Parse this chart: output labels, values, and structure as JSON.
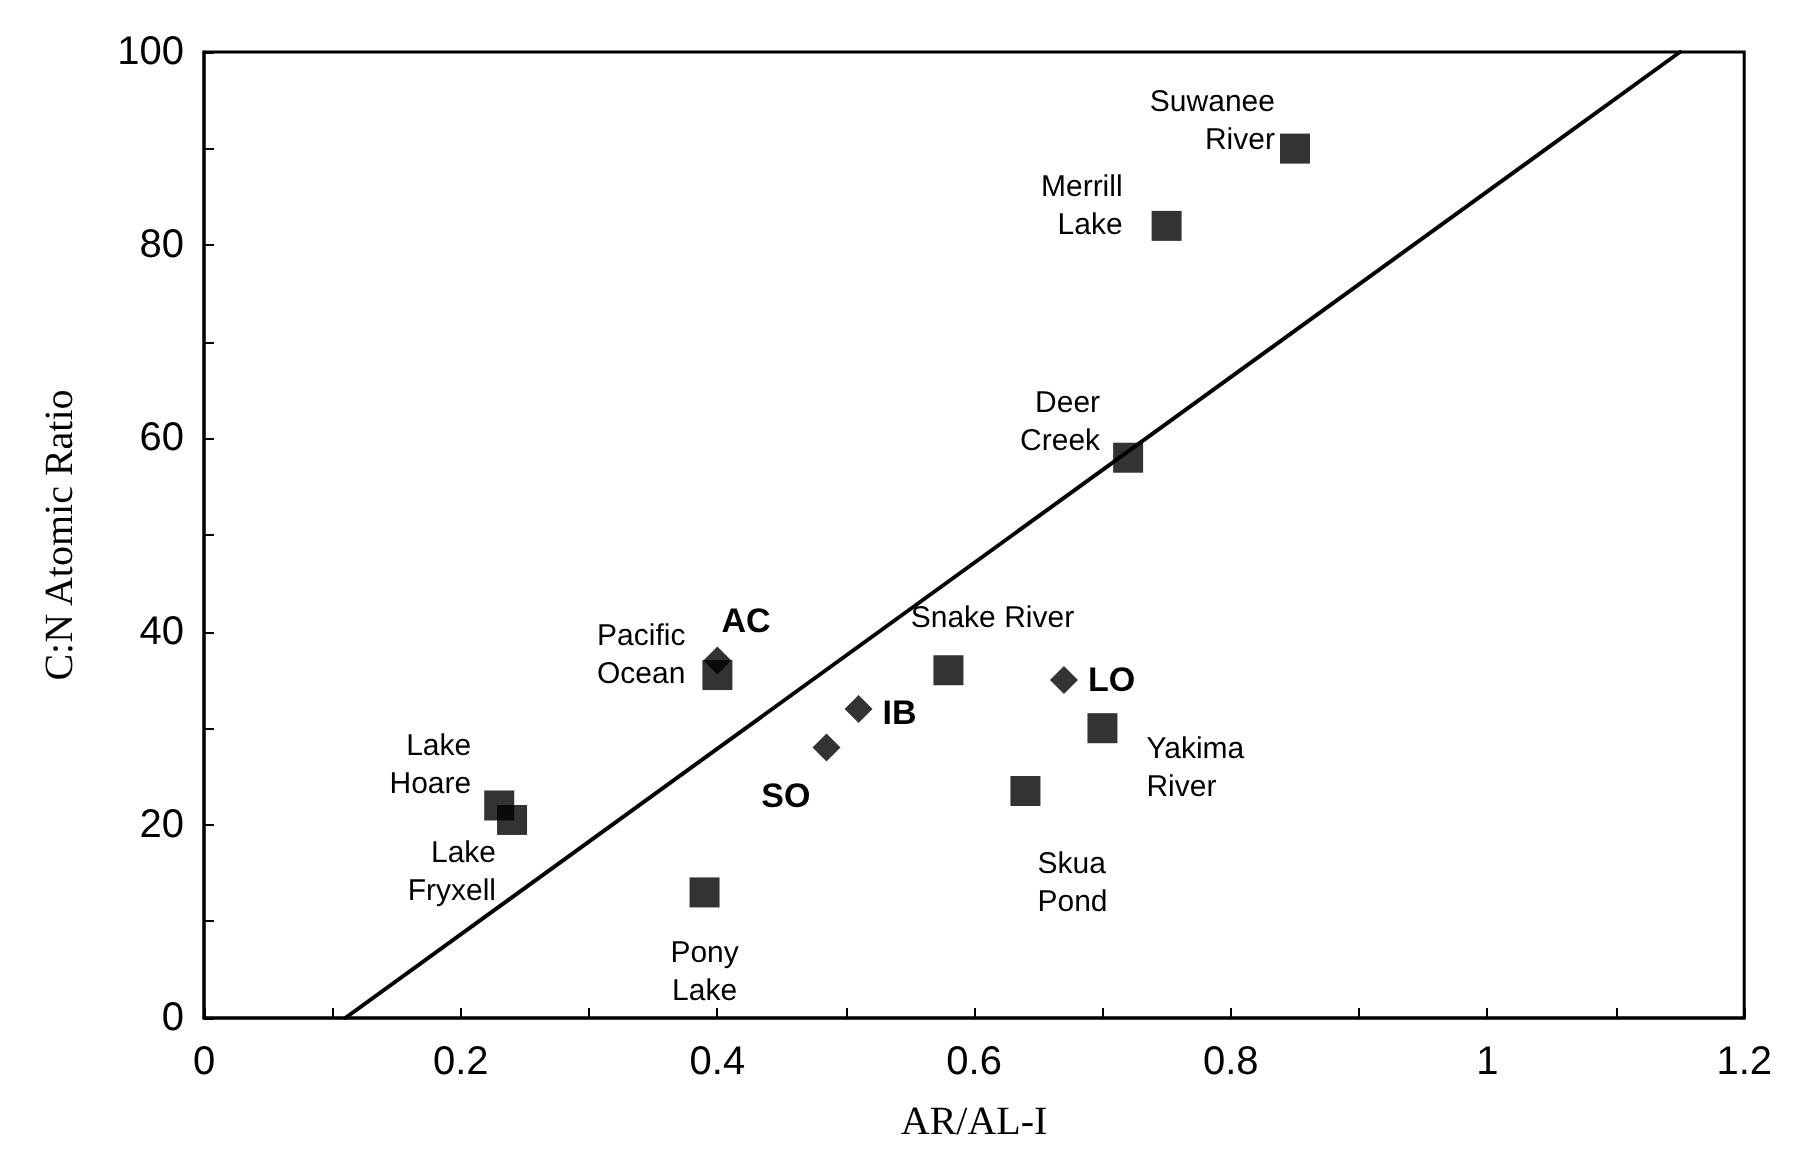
{
  "chart_data": {
    "type": "scatter",
    "xlabel": "AR/AL-I",
    "ylabel": "C:N Atomic Ratio",
    "xlim": [
      0,
      1.2
    ],
    "ylim": [
      0,
      100
    ],
    "xticks": [
      0,
      {
        "value": 0.1,
        "label": null
      },
      0.2,
      {
        "value": 0.3,
        "label": null
      },
      0.4,
      {
        "value": 0.5,
        "label": null
      },
      0.6,
      {
        "value": 0.7,
        "label": null
      },
      0.8,
      {
        "value": 0.9,
        "label": null
      },
      1,
      {
        "value": 1.1,
        "label": null
      },
      1.2
    ],
    "yticks": [
      0,
      {
        "value": 10,
        "label": null
      },
      20,
      {
        "value": 30,
        "label": null
      },
      40,
      {
        "value": 50,
        "label": null
      },
      60,
      {
        "value": 70,
        "label": null
      },
      80,
      {
        "value": 90,
        "label": null
      },
      100
    ],
    "grid": false,
    "series": [
      {
        "marker": "square",
        "color": "#000000",
        "x": [
          0.85,
          0.75,
          0.72,
          0.58,
          0.4,
          0.23,
          0.24,
          0.39,
          0.64,
          0.7
        ],
        "values": [
          90,
          82,
          58,
          36,
          35.5,
          22,
          20.5,
          13,
          23.5,
          30
        ]
      },
      {
        "marker": "diamond",
        "color": "#000000",
        "x": [
          0.4,
          0.51,
          0.485,
          0.67
        ],
        "values": [
          37,
          32,
          28,
          35
        ]
      },
      {
        "type": "line",
        "marker": "none",
        "line_style": "solid",
        "color": "#000000",
        "x": [
          0.11,
          1.15
        ],
        "values": [
          0,
          100
        ]
      }
    ],
    "annotations": [
      {
        "text": "Suwanee\nRiver",
        "x": 0.85,
        "y": 90
      },
      {
        "text": "Merrill\nLake",
        "x": 0.75,
        "y": 82
      },
      {
        "text": "Deer\nCreek",
        "x": 0.72,
        "y": 58
      },
      {
        "text": "Snake River",
        "x": 0.58,
        "y": 36
      },
      {
        "text": "Pacific\nOcean",
        "x": 0.4,
        "y": 35.5
      },
      {
        "text": "Lake\nHoare",
        "x": 0.23,
        "y": 22
      },
      {
        "text": "Lake\nFryxell",
        "x": 0.24,
        "y": 20.5
      },
      {
        "text": "Pony\nLake",
        "x": 0.39,
        "y": 13
      },
      {
        "text": "Skua\nPond",
        "x": 0.64,
        "y": 23.5
      },
      {
        "text": "Yakima\nRiver",
        "x": 0.7,
        "y": 30
      },
      {
        "text": "AC",
        "x": 0.4,
        "y": 37
      },
      {
        "text": "IB",
        "x": 0.51,
        "y": 32
      },
      {
        "text": "SO",
        "x": 0.485,
        "y": 28
      },
      {
        "text": "LO",
        "x": 0.67,
        "y": 35
      }
    ]
  }
}
